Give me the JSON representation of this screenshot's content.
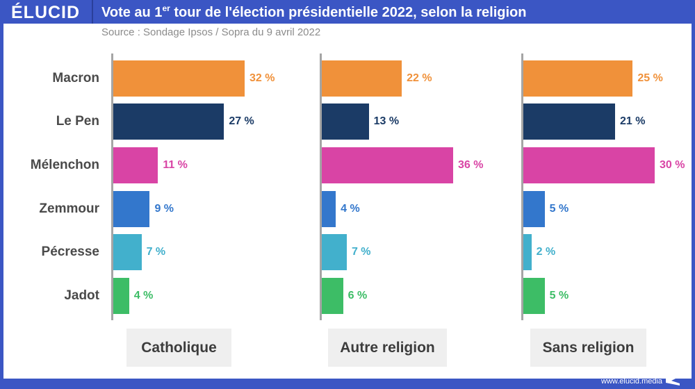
{
  "header": {
    "logo": "ÉLUCID",
    "title_prefix": "Vote au 1",
    "title_sup": "er",
    "title_suffix": " tour de l'élection présidentielle 2022, selon la religion",
    "source": "Source : Sondage Ipsos / Sopra du 9 avril 2022"
  },
  "footer": {
    "url": "www.elucid.media",
    "icon": "elucid-flag-icon"
  },
  "colors": {
    "frame": "#3b56c4",
    "Macron": "#f0913a",
    "Le Pen": "#1b3b66",
    "Mélenchon": "#d944a5",
    "Zemmour": "#3377cc",
    "Pécresse": "#42b0cc",
    "Jadot": "#3dbd66"
  },
  "chart_data": {
    "type": "bar",
    "orientation": "horizontal",
    "title": "Vote au 1er tour de l'élection présidentielle 2022, selon la religion",
    "subtitle": "Source : Sondage Ipsos / Sopra du 9 avril 2022",
    "categories": [
      "Macron",
      "Le Pen",
      "Mélenchon",
      "Zemmour",
      "Pécresse",
      "Jadot"
    ],
    "unit": "%",
    "grid": false,
    "legend": "none",
    "panels": [
      {
        "name": "Catholique",
        "values": [
          32,
          27,
          11,
          9,
          7,
          4
        ],
        "labels": [
          "32 %",
          "27 %",
          "11 %",
          "9 %",
          "7 %",
          "4 %"
        ]
      },
      {
        "name": "Autre religion",
        "values": [
          22,
          13,
          36,
          4,
          7,
          6
        ],
        "labels": [
          "22 %",
          "13 %",
          "36 %",
          "4 %",
          "7 %",
          "6 %"
        ]
      },
      {
        "name": "Sans religion",
        "values": [
          25,
          21,
          30,
          5,
          2,
          5
        ],
        "labels": [
          "25 %",
          "21 %",
          "30 %",
          "5 %",
          "2 %",
          "5 %"
        ]
      }
    ]
  }
}
